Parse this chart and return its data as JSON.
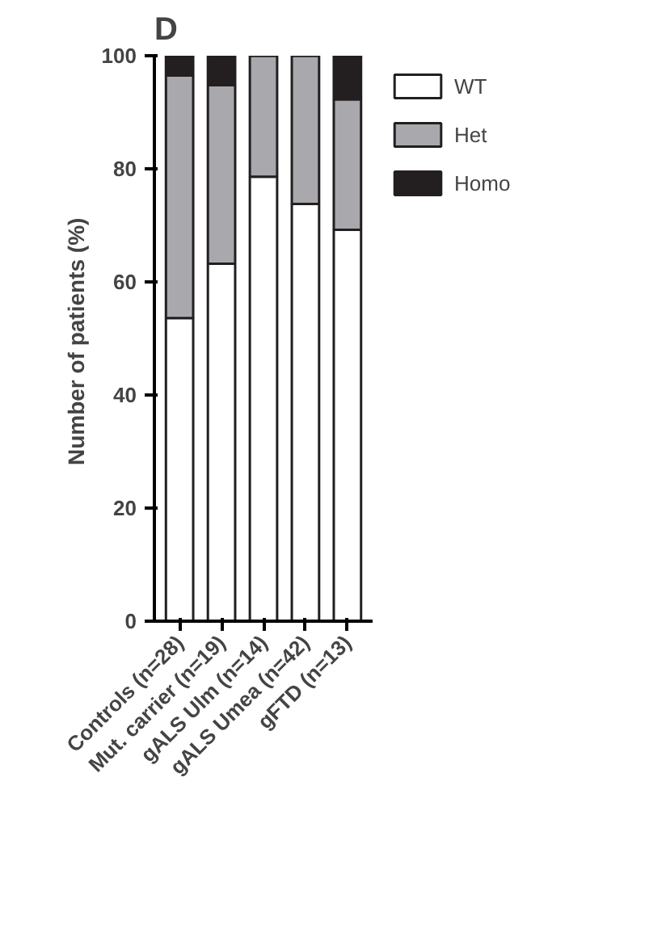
{
  "chart_data": {
    "type": "bar",
    "stacked": true,
    "title": "D",
    "ylabel": "Number of patients  (%)",
    "categories": [
      "Controls (n=28)",
      "Mut. carrier (n=19)",
      "gALS Ulm (n=14)",
      "gALS Umea (n=42)",
      "gFTD (n=13)"
    ],
    "series": [
      {
        "name": "WT",
        "color": "#ffffff",
        "values": [
          53.6,
          63.2,
          78.6,
          73.8,
          69.2
        ]
      },
      {
        "name": "Het",
        "color": "#a9a8ad",
        "values": [
          42.9,
          31.6,
          21.4,
          26.2,
          23.1
        ]
      },
      {
        "name": "Homo",
        "color": "#231f20",
        "values": [
          3.6,
          5.3,
          0,
          0,
          7.7
        ]
      }
    ],
    "ylim": [
      0,
      100
    ],
    "yticks": [
      0,
      20,
      40,
      60,
      80,
      100
    ],
    "grid": false,
    "legend": "top right"
  }
}
